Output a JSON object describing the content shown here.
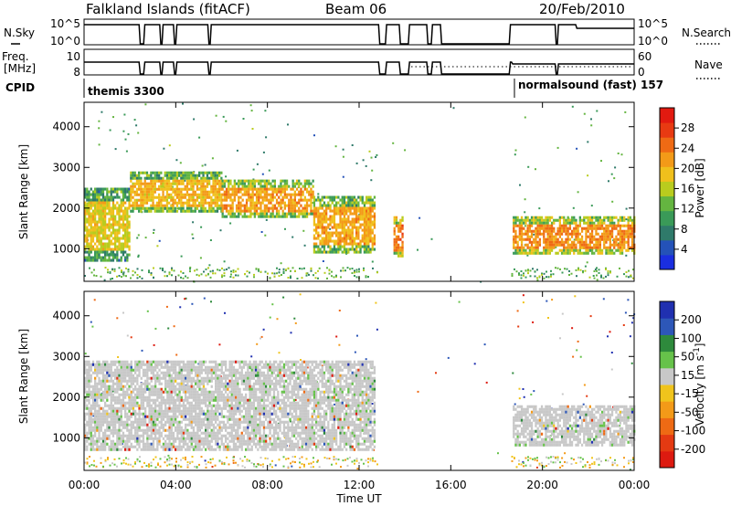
{
  "header": {
    "title": "Falkland Islands (fitACF)",
    "beam": "Beam 06",
    "date": "20/Feb/2010"
  },
  "top_panels": {
    "nsky_label": "N.Sky",
    "nsearch_label": "N.Search",
    "nsky_ticks": [
      "10^5",
      "10^0"
    ],
    "nsky_right_ticks": [
      "10^5",
      "10^0"
    ],
    "freq_label_line1": "Freq.",
    "freq_label_line2": "[MHz]",
    "freq_ticks": [
      "10",
      "8"
    ],
    "nave_ticks": [
      "60",
      "0"
    ],
    "nave_label": "Nave",
    "cpid_label": "CPID",
    "cpid_mode_1": "themis 3300",
    "cpid_mode_2": "normalsound (fast) 157"
  },
  "power_scale": {
    "label": "Power [dB]",
    "ticks": [
      "28",
      "24",
      "20",
      "16",
      "12",
      "8",
      "4"
    ],
    "colors": [
      "#1a2ee0",
      "#2452b8",
      "#2f7a6a",
      "#3a9a58",
      "#64b540",
      "#b9cc1e",
      "#f0c01c",
      "#f39a18",
      "#ef6a14",
      "#e83a12",
      "#e21a10"
    ]
  },
  "velocity_scale": {
    "label": "Velocity [m s-1]",
    "ticks": [
      "200",
      "100",
      "50",
      "15",
      "-15",
      "-50",
      "-100",
      "-200"
    ],
    "colors": [
      "#2030b0",
      "#2d57b8",
      "#2e8a3c",
      "#66c24a",
      "#c8c8c8",
      "#f0c41c",
      "#f39a18",
      "#ee6a14",
      "#e43a12",
      "#dd1a10"
    ]
  },
  "chart_data": [
    {
      "type": "heatmap",
      "name": "power",
      "ylabel": "Slant Range [km]",
      "xlabel": "",
      "x_ticks": [
        "00:00",
        "04:00",
        "08:00",
        "12:00",
        "16:00",
        "20:00",
        "00:00"
      ],
      "y_ticks": [
        1000,
        2000,
        3000,
        4000
      ],
      "xlim": [
        0,
        24
      ],
      "ylim": [
        200,
        4600
      ],
      "colorbar_label": "Power [dB]",
      "colorbar_range": [
        0,
        30
      ],
      "regions": [
        {
          "t0": 0.0,
          "t1": 2.0,
          "r0": 700,
          "r1": 2500,
          "value": 20
        },
        {
          "t0": 2.0,
          "t1": 6.0,
          "r0": 1900,
          "r1": 2900,
          "value": 22
        },
        {
          "t0": 6.0,
          "t1": 10.0,
          "r0": 1800,
          "r1": 2700,
          "value": 24
        },
        {
          "t0": 10.0,
          "t1": 12.7,
          "r0": 900,
          "r1": 2300,
          "value": 23
        },
        {
          "t0": 13.5,
          "t1": 13.9,
          "r0": 800,
          "r1": 1800,
          "value": 26
        },
        {
          "t0": 18.7,
          "t1": 24.0,
          "r0": 900,
          "r1": 1800,
          "value": 25
        }
      ]
    },
    {
      "type": "heatmap",
      "name": "velocity",
      "ylabel": "Slant Range [km]",
      "xlabel": "Time UT",
      "x_ticks": [
        "00:00",
        "04:00",
        "08:00",
        "12:00",
        "16:00",
        "20:00",
        "00:00"
      ],
      "y_ticks": [
        1000,
        2000,
        3000,
        4000
      ],
      "xlim": [
        0,
        24
      ],
      "ylim": [
        200,
        4600
      ],
      "colorbar_label": "Velocity [m s-1]",
      "colorbar_range": [
        -200,
        200
      ],
      "regions": [
        {
          "t0": 0.0,
          "t1": 12.7,
          "r0": 700,
          "r1": 2900,
          "value": 0
        },
        {
          "t0": 18.7,
          "t1": 24.0,
          "r0": 800,
          "r1": 1800,
          "value": 0
        }
      ]
    }
  ]
}
